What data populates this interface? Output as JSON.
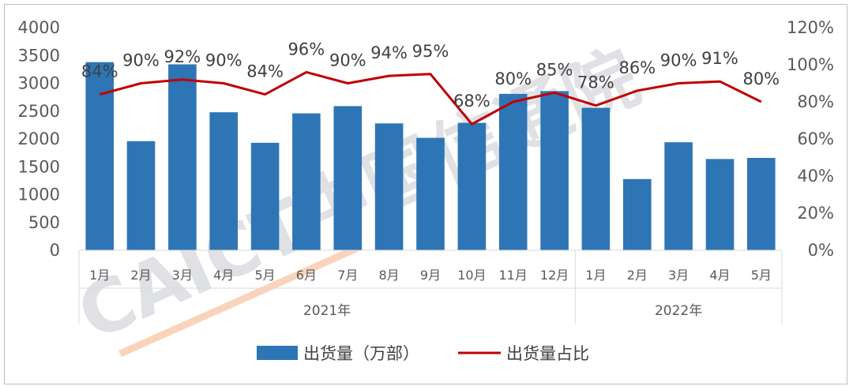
{
  "colors": {
    "bar": "#2e75b6",
    "line": "#c00000",
    "axis_text": "#595959",
    "label_text": "#404040",
    "gridline": "#d9d9d9",
    "watermark_gray": "#b8bcc6",
    "watermark_orange": "#f4b183"
  },
  "watermark": {
    "text": "CAICT中国信通院"
  },
  "chart_data": {
    "type": "bar",
    "categories": [
      "1月",
      "2月",
      "3月",
      "4月",
      "5月",
      "6月",
      "7月",
      "8月",
      "9月",
      "10月",
      "11月",
      "12月",
      "1月",
      "2月",
      "3月",
      "4月",
      "5月"
    ],
    "groups": [
      {
        "label": "2021年",
        "count": 12
      },
      {
        "label": "2022年",
        "count": 5
      }
    ],
    "series": [
      {
        "name": "出货量（万部）",
        "type": "bar",
        "axis": "left",
        "values": [
          3380,
          1960,
          3340,
          2480,
          1930,
          2460,
          2590,
          2280,
          2020,
          2290,
          2810,
          2860,
          2560,
          1280,
          1940,
          1640,
          1660
        ]
      },
      {
        "name": "出货量占比",
        "type": "line",
        "axis": "right",
        "values": [
          84,
          90,
          92,
          90,
          84,
          96,
          90,
          94,
          95,
          68,
          80,
          85,
          78,
          86,
          90,
          91,
          80
        ],
        "labels": [
          "84%",
          "90%",
          "92%",
          "90%",
          "84%",
          "96%",
          "90%",
          "94%",
          "95%",
          "68%",
          "80%",
          "85%",
          "78%",
          "86%",
          "90%",
          "91%",
          "80%"
        ]
      }
    ],
    "y_left": {
      "ylim": [
        0,
        4000
      ],
      "ticks": [
        "0",
        "500",
        "1000",
        "1500",
        "2000",
        "2500",
        "3000",
        "3500",
        "4000"
      ]
    },
    "y_right": {
      "ylim": [
        0,
        120
      ],
      "ticks": [
        "0%",
        "20%",
        "40%",
        "60%",
        "80%",
        "100%",
        "120%"
      ]
    },
    "legend": {
      "placement": "bottom",
      "items": [
        {
          "label": "出货量（万部）",
          "kind": "bar"
        },
        {
          "label": "出货量占比",
          "kind": "line"
        }
      ]
    },
    "grid": false
  }
}
